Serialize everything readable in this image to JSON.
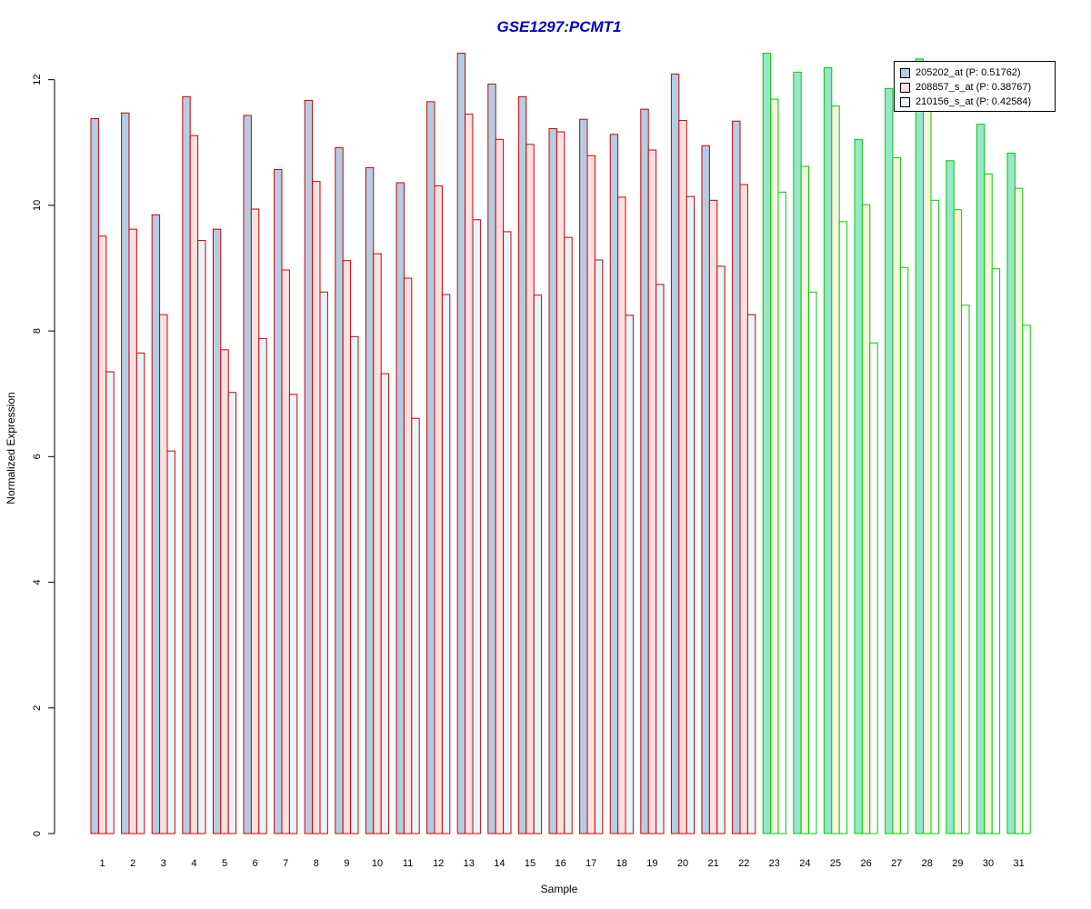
{
  "chart_data": {
    "type": "bar",
    "title": "GSE1297:PCMT1",
    "xlabel": "Sample",
    "ylabel": "Normalized Expression",
    "ylim": [
      0,
      12.4
    ],
    "yticks": [
      0,
      2,
      4,
      6,
      8,
      10,
      12
    ],
    "grid": false,
    "legend_position": "top-right",
    "categories": [
      "1",
      "2",
      "3",
      "4",
      "5",
      "6",
      "7",
      "8",
      "9",
      "10",
      "11",
      "12",
      "13",
      "14",
      "15",
      "16",
      "17",
      "18",
      "19",
      "20",
      "21",
      "22",
      "23",
      "24",
      "25",
      "26",
      "27",
      "28",
      "29",
      "30",
      "31"
    ],
    "group_colors": {
      "group1": {
        "samples": "1-22",
        "border": "#cc0000"
      },
      "group2": {
        "samples": "23-31",
        "border": "#00cc00"
      }
    },
    "series": [
      {
        "name": "205202_at (P: 0.51762)",
        "fill_group1": "#b3cde3",
        "fill_group2": "#99e5cc",
        "values": [
          11.38,
          11.47,
          9.85,
          11.73,
          9.62,
          11.43,
          10.57,
          11.67,
          10.92,
          10.6,
          10.36,
          11.65,
          12.42,
          11.93,
          11.73,
          11.22,
          11.37,
          11.13,
          11.53,
          12.09,
          10.95,
          11.34,
          12.42,
          12.12,
          12.19,
          11.05,
          11.86,
          12.33,
          10.71,
          11.29,
          10.83
        ]
      },
      {
        "name": "208857_s_at (P: 0.38767)",
        "fill_group1": "#ffe0e0",
        "fill_group2": "#f5f5dc",
        "values": [
          9.51,
          9.62,
          8.26,
          11.11,
          7.7,
          9.94,
          8.97,
          10.38,
          9.12,
          9.23,
          8.84,
          10.31,
          11.45,
          11.05,
          10.97,
          11.17,
          10.79,
          10.13,
          10.88,
          11.35,
          10.08,
          10.33,
          11.69,
          10.62,
          11.58,
          10.01,
          10.76,
          11.85,
          9.93,
          10.5,
          10.27
        ]
      },
      {
        "name": "210156_s_at (P: 0.42584)",
        "fill_group1": "#e6f5fa",
        "fill_group2": "#ffffff",
        "values": [
          7.35,
          7.65,
          6.09,
          9.44,
          7.02,
          7.88,
          6.99,
          8.62,
          7.91,
          7.32,
          6.61,
          8.58,
          9.77,
          9.58,
          8.57,
          9.49,
          9.13,
          8.25,
          8.74,
          10.14,
          9.03,
          8.26,
          10.21,
          8.62,
          9.74,
          7.81,
          9.01,
          10.08,
          8.41,
          8.99,
          8.09
        ]
      }
    ]
  }
}
